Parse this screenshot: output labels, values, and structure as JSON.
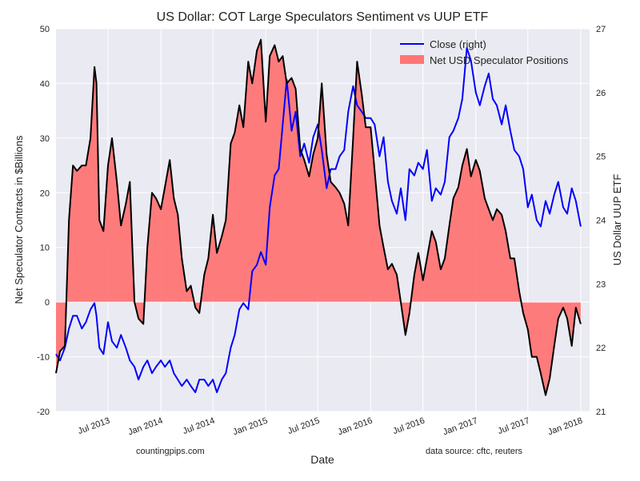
{
  "chart_data": {
    "type": "area",
    "title": "US Dollar: COT Large Speculators Sentiment vs UUP ETF",
    "xlabel": "Date",
    "ylabel_left": "Net Speculator Contracts in $Billions",
    "ylabel_right": "US Dollar UUP ETF",
    "left_ylim": [
      -20,
      50
    ],
    "left_ticks": [
      "50",
      "40",
      "30",
      "20",
      "10",
      "0",
      "-10",
      "-20"
    ],
    "right_ylim": [
      21,
      27
    ],
    "right_ticks": [
      "27",
      "26",
      "25",
      "24",
      "23",
      "22",
      "21"
    ],
    "x_range": [
      "2013-01",
      "2018-02"
    ],
    "x_ticks": [
      {
        "label": "Jul 2013",
        "date": "2013-07"
      },
      {
        "label": "Jan 2014",
        "date": "2014-01"
      },
      {
        "label": "Jul 2014",
        "date": "2014-07"
      },
      {
        "label": "Jan 2015",
        "date": "2015-01"
      },
      {
        "label": "Jul 2015",
        "date": "2015-07"
      },
      {
        "label": "Jan 2016",
        "date": "2016-01"
      },
      {
        "label": "Jul 2016",
        "date": "2016-07"
      },
      {
        "label": "Jan 2017",
        "date": "2017-01"
      },
      {
        "label": "Jul 2017",
        "date": "2017-07"
      },
      {
        "label": "Jan 2018",
        "date": "2018-01"
      }
    ],
    "grid": true,
    "legend_position": "top-right",
    "series": [
      {
        "name": "Net USD Speculator Positions",
        "axis": "left",
        "kind": "area",
        "fill_color": "#ff7575",
        "line_color": "#000000",
        "points": [
          [
            "2013-01-01",
            -13
          ],
          [
            "2013-01-15",
            -9
          ],
          [
            "2013-02-01",
            -8
          ],
          [
            "2013-02-15",
            15
          ],
          [
            "2013-03-01",
            25
          ],
          [
            "2013-03-15",
            24
          ],
          [
            "2013-04-01",
            25
          ],
          [
            "2013-04-15",
            25
          ],
          [
            "2013-05-01",
            30
          ],
          [
            "2013-05-15",
            43
          ],
          [
            "2013-05-22",
            40
          ],
          [
            "2013-06-01",
            15
          ],
          [
            "2013-06-15",
            13
          ],
          [
            "2013-07-01",
            25
          ],
          [
            "2013-07-15",
            30
          ],
          [
            "2013-08-01",
            22
          ],
          [
            "2013-08-15",
            14
          ],
          [
            "2013-09-01",
            18
          ],
          [
            "2013-09-15",
            22
          ],
          [
            "2013-10-01",
            0
          ],
          [
            "2013-10-15",
            -3
          ],
          [
            "2013-11-01",
            -4
          ],
          [
            "2013-11-15",
            10
          ],
          [
            "2013-12-01",
            20
          ],
          [
            "2013-12-15",
            19
          ],
          [
            "2014-01-01",
            17
          ],
          [
            "2014-01-15",
            21
          ],
          [
            "2014-02-01",
            26
          ],
          [
            "2014-02-15",
            19
          ],
          [
            "2014-03-01",
            16
          ],
          [
            "2014-03-15",
            8
          ],
          [
            "2014-04-01",
            2
          ],
          [
            "2014-04-15",
            3
          ],
          [
            "2014-05-01",
            -1
          ],
          [
            "2014-05-15",
            -2
          ],
          [
            "2014-06-01",
            5
          ],
          [
            "2014-06-15",
            8
          ],
          [
            "2014-07-01",
            16
          ],
          [
            "2014-07-15",
            9
          ],
          [
            "2014-08-01",
            12
          ],
          [
            "2014-08-15",
            15
          ],
          [
            "2014-09-01",
            29
          ],
          [
            "2014-09-15",
            31
          ],
          [
            "2014-10-01",
            36
          ],
          [
            "2014-10-15",
            32
          ],
          [
            "2014-11-01",
            44
          ],
          [
            "2014-11-15",
            40
          ],
          [
            "2014-12-01",
            46
          ],
          [
            "2014-12-15",
            48
          ],
          [
            "2015-01-01",
            33
          ],
          [
            "2015-01-15",
            45
          ],
          [
            "2015-02-01",
            47
          ],
          [
            "2015-02-15",
            44
          ],
          [
            "2015-03-01",
            45
          ],
          [
            "2015-03-15",
            40
          ],
          [
            "2015-04-01",
            41
          ],
          [
            "2015-04-15",
            39
          ],
          [
            "2015-05-01",
            28
          ],
          [
            "2015-05-15",
            26
          ],
          [
            "2015-06-01",
            23
          ],
          [
            "2015-06-15",
            27
          ],
          [
            "2015-07-01",
            30
          ],
          [
            "2015-07-15",
            40
          ],
          [
            "2015-08-01",
            27
          ],
          [
            "2015-08-15",
            22
          ],
          [
            "2015-09-01",
            21
          ],
          [
            "2015-09-15",
            20
          ],
          [
            "2015-10-01",
            18
          ],
          [
            "2015-10-15",
            14
          ],
          [
            "2015-11-01",
            30
          ],
          [
            "2015-11-15",
            44
          ],
          [
            "2015-12-01",
            38
          ],
          [
            "2015-12-15",
            32
          ],
          [
            "2016-01-01",
            32
          ],
          [
            "2016-01-15",
            24
          ],
          [
            "2016-02-01",
            14
          ],
          [
            "2016-02-15",
            10
          ],
          [
            "2016-03-01",
            6
          ],
          [
            "2016-03-15",
            7
          ],
          [
            "2016-04-01",
            5
          ],
          [
            "2016-04-15",
            0
          ],
          [
            "2016-05-01",
            -6
          ],
          [
            "2016-05-15",
            -2
          ],
          [
            "2016-06-01",
            5
          ],
          [
            "2016-06-15",
            9
          ],
          [
            "2016-07-01",
            4
          ],
          [
            "2016-07-15",
            8
          ],
          [
            "2016-08-01",
            13
          ],
          [
            "2016-08-15",
            11
          ],
          [
            "2016-09-01",
            6
          ],
          [
            "2016-09-15",
            8
          ],
          [
            "2016-10-01",
            14
          ],
          [
            "2016-10-15",
            19
          ],
          [
            "2016-11-01",
            21
          ],
          [
            "2016-11-15",
            25
          ],
          [
            "2016-12-01",
            28
          ],
          [
            "2016-12-15",
            23
          ],
          [
            "2017-01-01",
            26
          ],
          [
            "2017-01-15",
            24
          ],
          [
            "2017-02-01",
            19
          ],
          [
            "2017-02-15",
            17
          ],
          [
            "2017-03-01",
            15
          ],
          [
            "2017-03-15",
            17
          ],
          [
            "2017-04-01",
            16
          ],
          [
            "2017-04-15",
            13
          ],
          [
            "2017-05-01",
            8
          ],
          [
            "2017-05-15",
            8
          ],
          [
            "2017-06-01",
            2
          ],
          [
            "2017-06-15",
            -2
          ],
          [
            "2017-07-01",
            -5
          ],
          [
            "2017-07-15",
            -10
          ],
          [
            "2017-08-01",
            -10
          ],
          [
            "2017-08-15",
            -13
          ],
          [
            "2017-09-01",
            -17
          ],
          [
            "2017-09-15",
            -14
          ],
          [
            "2017-10-01",
            -8
          ],
          [
            "2017-10-15",
            -3
          ],
          [
            "2017-11-01",
            -1
          ],
          [
            "2017-11-15",
            -3
          ],
          [
            "2017-12-01",
            -8
          ],
          [
            "2017-12-15",
            -1
          ],
          [
            "2018-01-01",
            -4
          ]
        ]
      },
      {
        "name": "Close (right)",
        "axis": "right",
        "kind": "line",
        "line_color": "#0000ff",
        "points": [
          [
            "2013-01-01",
            21.9
          ],
          [
            "2013-01-15",
            21.8
          ],
          [
            "2013-02-01",
            22.0
          ],
          [
            "2013-02-15",
            22.3
          ],
          [
            "2013-03-01",
            22.5
          ],
          [
            "2013-03-15",
            22.5
          ],
          [
            "2013-04-01",
            22.3
          ],
          [
            "2013-04-15",
            22.4
          ],
          [
            "2013-05-01",
            22.6
          ],
          [
            "2013-05-15",
            22.7
          ],
          [
            "2013-05-22",
            22.5
          ],
          [
            "2013-06-01",
            22.0
          ],
          [
            "2013-06-15",
            21.9
          ],
          [
            "2013-07-01",
            22.4
          ],
          [
            "2013-07-15",
            22.1
          ],
          [
            "2013-08-01",
            22.0
          ],
          [
            "2013-08-15",
            22.2
          ],
          [
            "2013-09-01",
            22.0
          ],
          [
            "2013-09-15",
            21.8
          ],
          [
            "2013-10-01",
            21.7
          ],
          [
            "2013-10-15",
            21.5
          ],
          [
            "2013-11-01",
            21.7
          ],
          [
            "2013-11-15",
            21.8
          ],
          [
            "2013-12-01",
            21.6
          ],
          [
            "2013-12-15",
            21.7
          ],
          [
            "2014-01-01",
            21.8
          ],
          [
            "2014-01-15",
            21.7
          ],
          [
            "2014-02-01",
            21.8
          ],
          [
            "2014-02-15",
            21.6
          ],
          [
            "2014-03-01",
            21.5
          ],
          [
            "2014-03-15",
            21.4
          ],
          [
            "2014-04-01",
            21.5
          ],
          [
            "2014-04-15",
            21.4
          ],
          [
            "2014-05-01",
            21.3
          ],
          [
            "2014-05-15",
            21.5
          ],
          [
            "2014-06-01",
            21.5
          ],
          [
            "2014-06-15",
            21.4
          ],
          [
            "2014-07-01",
            21.5
          ],
          [
            "2014-07-15",
            21.3
          ],
          [
            "2014-08-01",
            21.5
          ],
          [
            "2014-08-15",
            21.6
          ],
          [
            "2014-09-01",
            22.0
          ],
          [
            "2014-09-15",
            22.2
          ],
          [
            "2014-10-01",
            22.6
          ],
          [
            "2014-10-15",
            22.7
          ],
          [
            "2014-11-01",
            22.6
          ],
          [
            "2014-11-15",
            23.2
          ],
          [
            "2014-12-01",
            23.3
          ],
          [
            "2014-12-15",
            23.5
          ],
          [
            "2015-01-01",
            23.3
          ],
          [
            "2015-01-15",
            24.2
          ],
          [
            "2015-02-01",
            24.7
          ],
          [
            "2015-02-15",
            24.8
          ],
          [
            "2015-03-01",
            25.5
          ],
          [
            "2015-03-15",
            26.2
          ],
          [
            "2015-04-01",
            25.4
          ],
          [
            "2015-04-15",
            25.7
          ],
          [
            "2015-05-01",
            25.0
          ],
          [
            "2015-05-15",
            25.2
          ],
          [
            "2015-06-01",
            24.9
          ],
          [
            "2015-06-15",
            25.3
          ],
          [
            "2015-07-01",
            25.5
          ],
          [
            "2015-07-15",
            25.1
          ],
          [
            "2015-08-01",
            24.5
          ],
          [
            "2015-08-15",
            24.8
          ],
          [
            "2015-09-01",
            24.8
          ],
          [
            "2015-09-15",
            25.0
          ],
          [
            "2015-10-01",
            25.1
          ],
          [
            "2015-10-15",
            25.7
          ],
          [
            "2015-11-01",
            26.1
          ],
          [
            "2015-11-15",
            25.8
          ],
          [
            "2015-12-01",
            25.7
          ],
          [
            "2015-12-15",
            25.6
          ],
          [
            "2016-01-01",
            25.6
          ],
          [
            "2016-01-15",
            25.5
          ],
          [
            "2016-02-01",
            25.0
          ],
          [
            "2016-02-15",
            25.3
          ],
          [
            "2016-03-01",
            24.6
          ],
          [
            "2016-03-15",
            24.3
          ],
          [
            "2016-04-01",
            24.1
          ],
          [
            "2016-04-15",
            24.5
          ],
          [
            "2016-05-01",
            24.0
          ],
          [
            "2016-05-15",
            24.8
          ],
          [
            "2016-06-01",
            24.7
          ],
          [
            "2016-06-15",
            24.9
          ],
          [
            "2016-07-01",
            24.8
          ],
          [
            "2016-07-15",
            25.1
          ],
          [
            "2016-08-01",
            24.3
          ],
          [
            "2016-08-15",
            24.5
          ],
          [
            "2016-09-01",
            24.4
          ],
          [
            "2016-09-15",
            24.6
          ],
          [
            "2016-10-01",
            25.3
          ],
          [
            "2016-10-15",
            25.4
          ],
          [
            "2016-11-01",
            25.6
          ],
          [
            "2016-11-15",
            25.9
          ],
          [
            "2016-12-01",
            26.7
          ],
          [
            "2016-12-15",
            26.5
          ],
          [
            "2017-01-01",
            26.0
          ],
          [
            "2017-01-15",
            25.8
          ],
          [
            "2017-02-01",
            26.1
          ],
          [
            "2017-02-15",
            26.3
          ],
          [
            "2017-03-01",
            25.9
          ],
          [
            "2017-03-15",
            25.8
          ],
          [
            "2017-04-01",
            25.5
          ],
          [
            "2017-04-15",
            25.8
          ],
          [
            "2017-05-01",
            25.4
          ],
          [
            "2017-05-15",
            25.1
          ],
          [
            "2017-06-01",
            25.0
          ],
          [
            "2017-06-15",
            24.8
          ],
          [
            "2017-07-01",
            24.2
          ],
          [
            "2017-07-15",
            24.4
          ],
          [
            "2017-08-01",
            24.0
          ],
          [
            "2017-08-15",
            23.9
          ],
          [
            "2017-09-01",
            24.3
          ],
          [
            "2017-09-15",
            24.1
          ],
          [
            "2017-10-01",
            24.4
          ],
          [
            "2017-10-15",
            24.6
          ],
          [
            "2017-11-01",
            24.2
          ],
          [
            "2017-11-15",
            24.1
          ],
          [
            "2017-12-01",
            24.5
          ],
          [
            "2017-12-15",
            24.3
          ],
          [
            "2018-01-01",
            23.9
          ]
        ]
      }
    ],
    "annotations": {
      "left_note": "countingpips.com",
      "right_note": "data source: cftc, reuters"
    }
  }
}
